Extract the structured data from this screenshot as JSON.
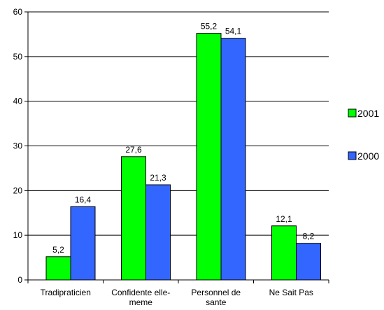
{
  "chart_data": {
    "type": "bar",
    "categories": [
      "Tradipraticien",
      "Confidente elle-meme",
      "Personnel de sante",
      "Ne Sait Pas"
    ],
    "category_label_lines": [
      [
        "Tradipraticien"
      ],
      [
        "Confidente elle-",
        "meme"
      ],
      [
        "Personnel de",
        "sante"
      ],
      [
        "Ne Sait Pas"
      ]
    ],
    "series": [
      {
        "name": "2001",
        "color": "#00ff00",
        "values": [
          5.2,
          27.6,
          55.2,
          12.1
        ],
        "labels": [
          "5,2",
          "27,6",
          "55,2",
          "12,1"
        ]
      },
      {
        "name": "2000",
        "color": "#3366ff",
        "values": [
          16.4,
          21.3,
          54.1,
          8.2
        ],
        "labels": [
          "16,4",
          "21,3",
          "54,1",
          "8,2"
        ]
      }
    ],
    "ylim": [
      0,
      60
    ],
    "yticks": [
      0,
      10,
      20,
      30,
      40,
      50,
      60
    ],
    "ytick_labels": [
      "0",
      "10",
      "20",
      "30",
      "40",
      "50",
      "60"
    ],
    "grid": true,
    "legend": "right"
  }
}
